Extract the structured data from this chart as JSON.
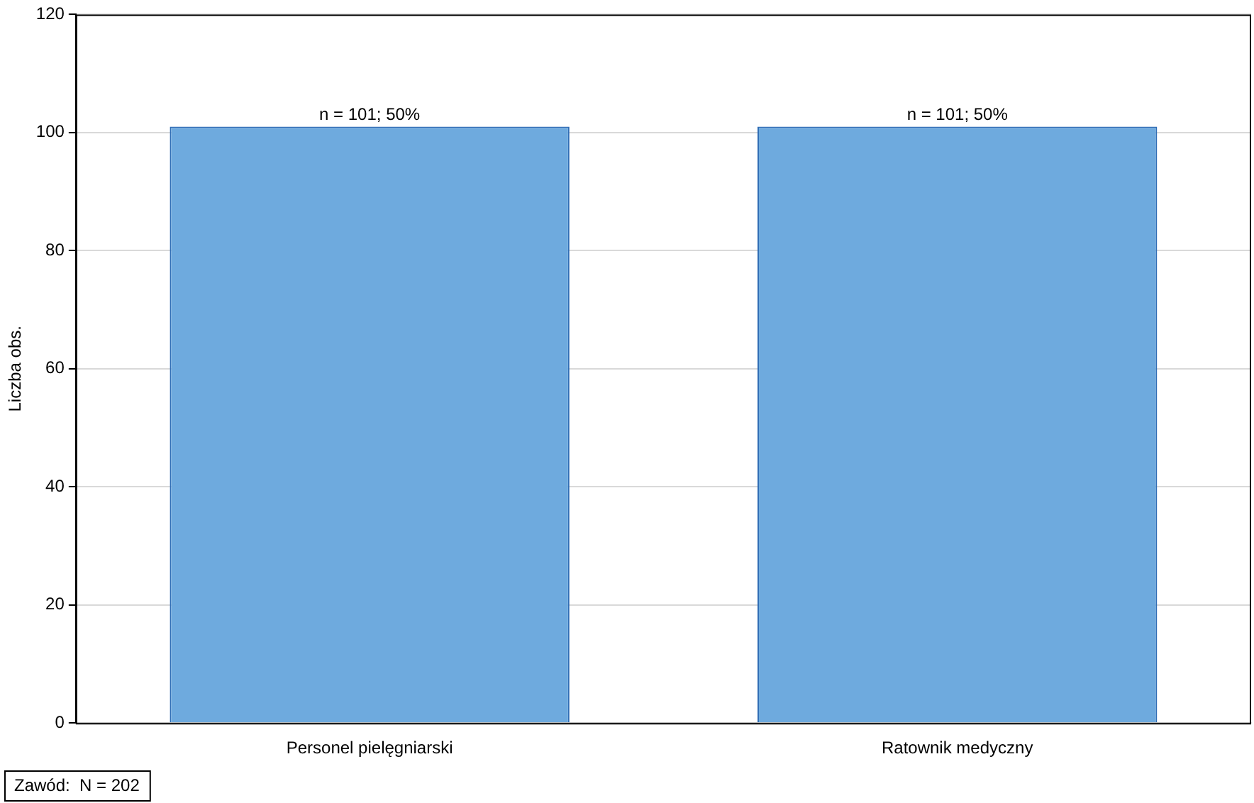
{
  "chart_data": {
    "type": "bar",
    "ylabel": "Liczba obs.",
    "categories": [
      "Personel pielęgniarski",
      "Ratownik medyczny"
    ],
    "values": [
      101,
      101
    ],
    "value_labels": [
      "n = 101; 50%",
      "n = 101; 50%"
    ],
    "color": "#6eaade",
    "ylim": [
      0,
      120
    ],
    "yticks": [
      0,
      20,
      40,
      60,
      80,
      100,
      120
    ],
    "grid": "y",
    "legend": false,
    "annotations": [
      "Zawód:  N = 202"
    ]
  }
}
